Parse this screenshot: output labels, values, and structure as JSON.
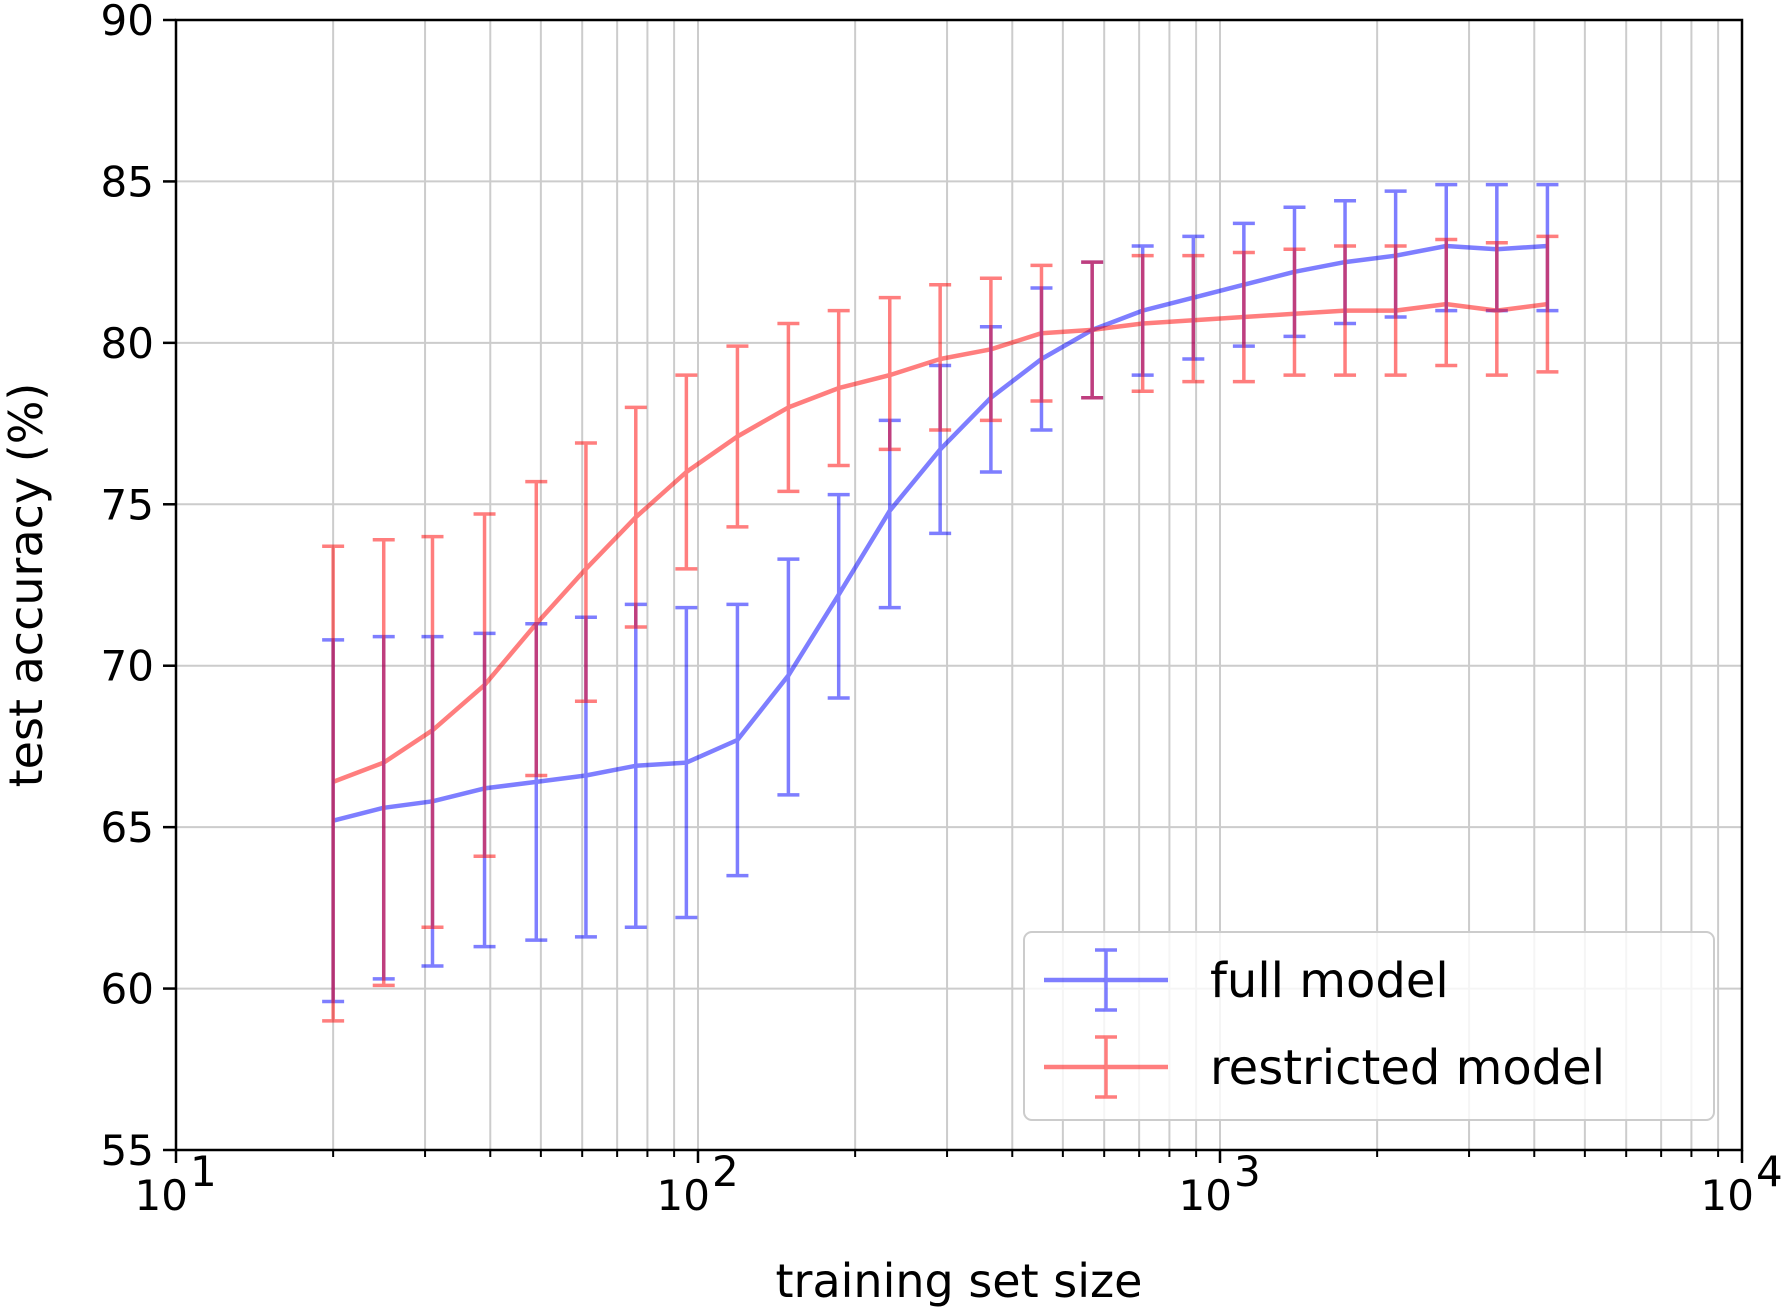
{
  "chart_data": {
    "type": "line",
    "title": "",
    "xlabel": "training set size",
    "ylabel": "test accuracy (%)",
    "xscale": "log",
    "xlim": [
      10,
      10000
    ],
    "ylim": [
      55,
      90
    ],
    "grid": true,
    "legend_position": "bottom-right",
    "y_ticks": [
      "55",
      "60",
      "65",
      "70",
      "75",
      "80",
      "85",
      "90"
    ],
    "x_ticks": [
      {
        "base": "10",
        "exp": "1"
      },
      {
        "base": "10",
        "exp": "2"
      },
      {
        "base": "10",
        "exp": "3"
      },
      {
        "base": "10",
        "exp": "4"
      }
    ],
    "x": [
      20,
      25,
      31,
      39,
      49,
      61,
      76,
      95,
      119,
      149,
      186,
      233,
      291,
      364,
      455,
      569,
      711,
      889,
      1111,
      1389,
      1736,
      2170,
      2713,
      3391,
      4239
    ],
    "series": [
      {
        "name": "full model",
        "color": "#0000ff",
        "values": [
          65.2,
          65.6,
          65.8,
          66.2,
          66.4,
          66.6,
          66.9,
          67.0,
          67.7,
          69.7,
          72.2,
          74.8,
          76.7,
          78.3,
          79.5,
          80.4,
          81.0,
          81.4,
          81.8,
          82.2,
          82.5,
          82.7,
          83.0,
          82.9,
          83.0
        ],
        "lower": [
          59.6,
          60.3,
          60.7,
          61.3,
          61.5,
          61.6,
          61.9,
          62.2,
          63.5,
          66.0,
          69.0,
          71.8,
          74.1,
          76.0,
          77.3,
          78.3,
          79.0,
          79.5,
          79.9,
          80.2,
          80.6,
          80.8,
          81.0,
          81.0,
          81.0
        ],
        "upper": [
          70.8,
          70.9,
          70.9,
          71.0,
          71.3,
          71.5,
          71.9,
          71.8,
          71.9,
          73.3,
          75.3,
          77.6,
          79.3,
          80.5,
          81.7,
          82.5,
          83.0,
          83.3,
          83.7,
          84.2,
          84.4,
          84.7,
          84.9,
          84.9,
          84.9
        ]
      },
      {
        "name": "restricted model",
        "color": "#ff0000",
        "values": [
          66.4,
          67.0,
          68.0,
          69.4,
          71.3,
          73.0,
          74.6,
          76.0,
          77.1,
          78.0,
          78.6,
          79.0,
          79.5,
          79.8,
          80.3,
          80.4,
          80.6,
          80.7,
          80.8,
          80.9,
          81.0,
          81.0,
          81.2,
          81.0,
          81.2
        ],
        "lower": [
          59.0,
          60.1,
          61.9,
          64.1,
          66.6,
          68.9,
          71.2,
          73.0,
          74.3,
          75.4,
          76.2,
          76.7,
          77.3,
          77.6,
          78.2,
          78.3,
          78.5,
          78.8,
          78.8,
          79.0,
          79.0,
          79.0,
          79.3,
          79.0,
          79.1
        ],
        "upper": [
          73.7,
          73.9,
          74.0,
          74.7,
          75.7,
          76.9,
          78.0,
          79.0,
          79.9,
          80.6,
          81.0,
          81.4,
          81.8,
          82.0,
          82.4,
          82.5,
          82.7,
          82.7,
          82.8,
          82.9,
          83.0,
          83.0,
          83.2,
          83.1,
          83.3
        ]
      }
    ]
  }
}
